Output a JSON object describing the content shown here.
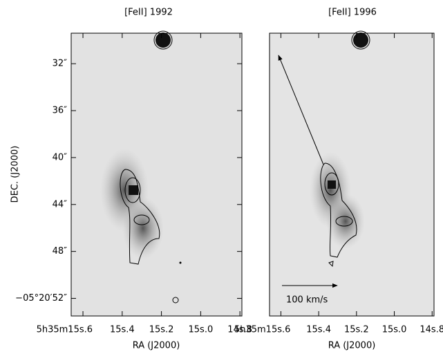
{
  "chart_data": [
    {
      "type": "image",
      "title": "[FeII] 1992",
      "xlabel": "RA (J2000)",
      "ylabel": "DEC. (J2000)",
      "xlim": [
        15.66,
        14.79
      ],
      "ylim": [
        53.5,
        29.4
      ],
      "xticks": [
        {
          "value": 15.6,
          "label": "5h35m15s.6"
        },
        {
          "value": 15.4,
          "label": "15s.4"
        },
        {
          "value": 15.2,
          "label": "15s.2"
        },
        {
          "value": 15.0,
          "label": "15s.0"
        },
        {
          "value": 14.8,
          "label": "14s.8"
        }
      ],
      "yticks": [
        {
          "value": 32,
          "label": "32″"
        },
        {
          "value": 36,
          "label": "36″"
        },
        {
          "value": 40,
          "label": "40″"
        },
        {
          "value": 44,
          "label": "44″"
        },
        {
          "value": 48,
          "label": "48″"
        },
        {
          "value": 52,
          "label": "−05°20′52″"
        }
      ]
    },
    {
      "type": "image",
      "title": "[FeII] 1996",
      "xlabel": "RA (J2000)",
      "xlim": [
        15.66,
        14.79
      ],
      "ylim": [
        53.5,
        29.4
      ],
      "xticks": [
        {
          "value": 15.6,
          "label": "5h35m15s.6"
        },
        {
          "value": 15.4,
          "label": "15s.4"
        },
        {
          "value": 15.2,
          "label": "15s.2"
        },
        {
          "value": 15.0,
          "label": "15s.0"
        },
        {
          "value": 14.8,
          "label": "14s.8"
        }
      ],
      "annotations": [
        "100 km/s"
      ]
    }
  ]
}
